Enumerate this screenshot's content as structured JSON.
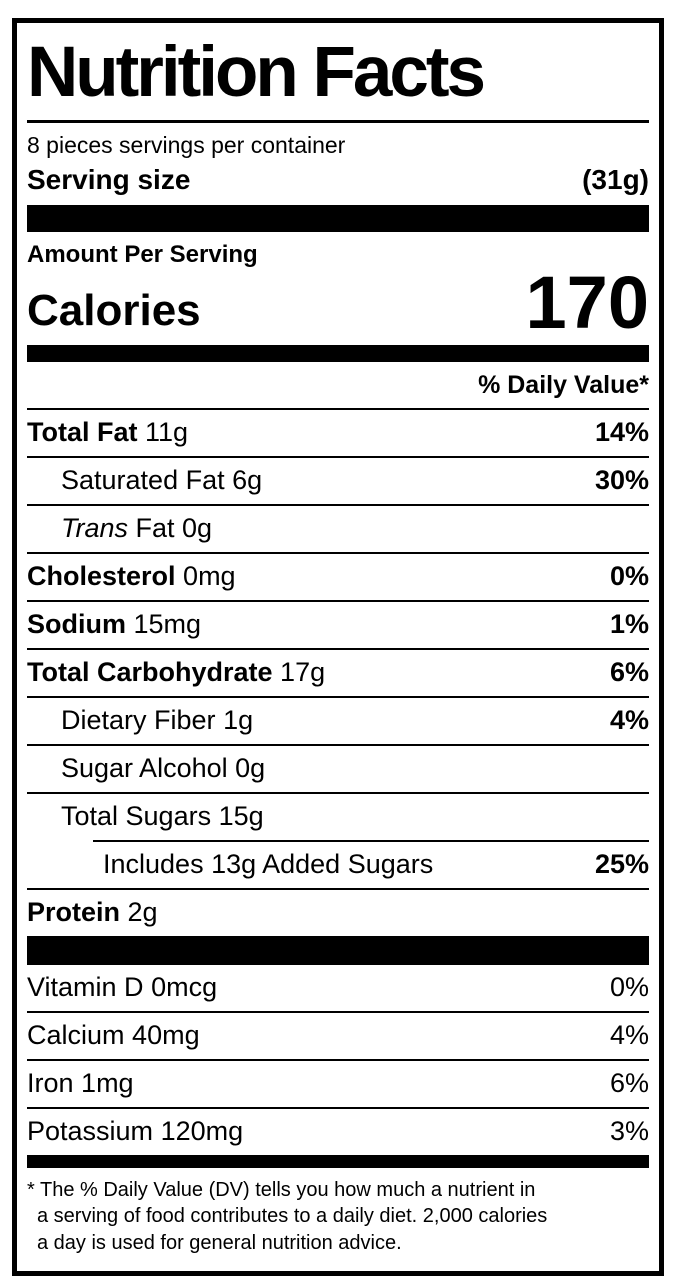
{
  "label": {
    "title": "Nutrition Facts",
    "servings_per_container": "8 pieces servings per container",
    "serving_size": {
      "label": "Serving size",
      "value": "(31g)"
    },
    "amount_per_serving": "Amount Per Serving",
    "calories": {
      "label": "Calories",
      "value": "170"
    },
    "daily_value_header": "% Daily Value*",
    "nutrients": [
      {
        "name": "Total Fat",
        "amount": "11g",
        "dv": "14%",
        "indent": 0,
        "name_bold": true,
        "name_italic": false,
        "dv_bold": true,
        "separator": "full"
      },
      {
        "name": "Saturated Fat",
        "amount": "6g",
        "dv": "30%",
        "indent": 1,
        "name_bold": false,
        "name_italic": false,
        "dv_bold": true,
        "separator": "full"
      },
      {
        "name": "Trans",
        "amount": "Fat 0g",
        "dv": "",
        "indent": 1,
        "name_bold": false,
        "name_italic": true,
        "dv_bold": true,
        "separator": "full"
      },
      {
        "name": "Cholesterol",
        "amount": "0mg",
        "dv": "0%",
        "indent": 0,
        "name_bold": true,
        "name_italic": false,
        "dv_bold": true,
        "separator": "full"
      },
      {
        "name": "Sodium",
        "amount": "15mg",
        "dv": "1%",
        "indent": 0,
        "name_bold": true,
        "name_italic": false,
        "dv_bold": true,
        "separator": "full"
      },
      {
        "name": "Total Carbohydrate",
        "amount": "17g",
        "dv": "6%",
        "indent": 0,
        "name_bold": true,
        "name_italic": false,
        "dv_bold": true,
        "separator": "full"
      },
      {
        "name": "Dietary Fiber",
        "amount": "1g",
        "dv": "4%",
        "indent": 1,
        "name_bold": false,
        "name_italic": false,
        "dv_bold": true,
        "separator": "full"
      },
      {
        "name": "Sugar Alcohol",
        "amount": "0g",
        "dv": "",
        "indent": 1,
        "name_bold": false,
        "name_italic": false,
        "dv_bold": true,
        "separator": "full"
      },
      {
        "name": "Total Sugars",
        "amount": "15g",
        "dv": "",
        "indent": 1,
        "name_bold": false,
        "name_italic": false,
        "dv_bold": true,
        "separator": "full"
      },
      {
        "name": "Includes 13g Added Sugars",
        "amount": "",
        "dv": "25%",
        "indent": 2,
        "name_bold": false,
        "name_italic": false,
        "dv_bold": true,
        "separator": "indent"
      },
      {
        "name": "Protein",
        "amount": "2g",
        "dv": "",
        "indent": 0,
        "name_bold": true,
        "name_italic": false,
        "dv_bold": true,
        "separator": "full"
      }
    ],
    "micronutrients": [
      {
        "name": "Vitamin D",
        "amount": "0mcg",
        "dv": "0%"
      },
      {
        "name": "Calcium",
        "amount": "40mg",
        "dv": "4%"
      },
      {
        "name": "Iron",
        "amount": "1mg",
        "dv": "6%"
      },
      {
        "name": "Potassium",
        "amount": "120mg",
        "dv": "3%"
      }
    ],
    "footnote_lines": [
      "* The % Daily Value (DV) tells you how much a nutrient in",
      "a serving of food contributes to a daily diet. 2,000 calories",
      "a day is used for general nutrition advice."
    ],
    "colors": {
      "ink": "#000000",
      "background": "#ffffff"
    }
  }
}
